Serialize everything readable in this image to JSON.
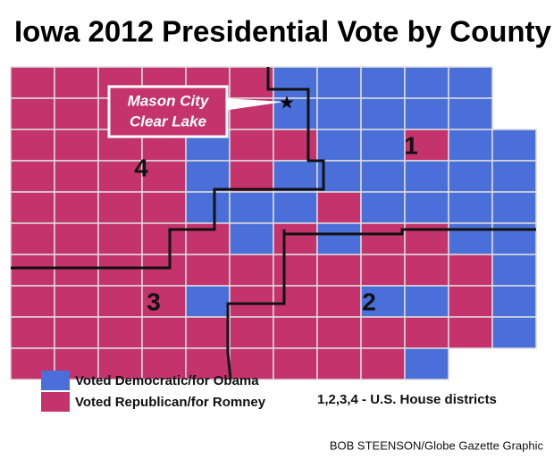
{
  "title": "Iowa 2012 Presidential Vote by County",
  "callout": {
    "lines": [
      "Mason City",
      "Clear Lake"
    ]
  },
  "districts": [
    "1",
    "2",
    "3",
    "4"
  ],
  "legend": [
    {
      "label": "Voted Democratic/for Obama",
      "color": "#4a6fd8"
    },
    {
      "label": "Voted Republican/for Romney",
      "color": "#c4336c"
    }
  ],
  "note": "1,2,3,4 - U.S. House districts",
  "credit": "BOB STEENSON/Globe Gazette Graphic"
}
